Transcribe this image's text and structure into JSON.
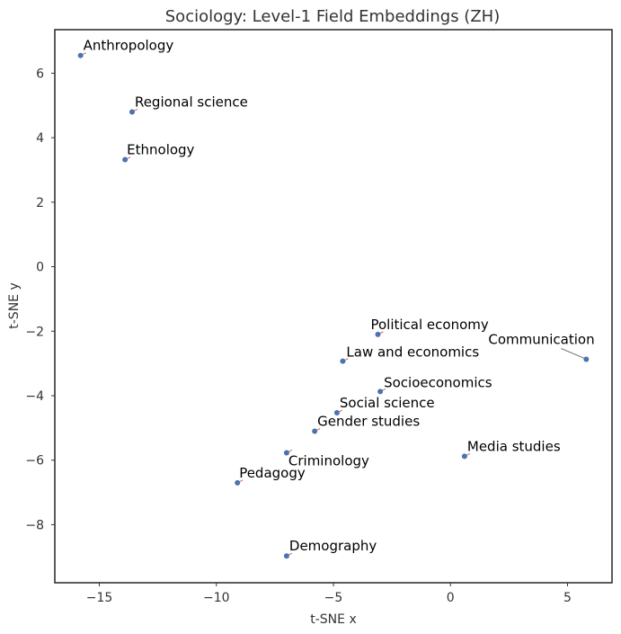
{
  "chart_data": {
    "type": "scatter",
    "title": "Sociology: Level-1 Field Embeddings (ZH)",
    "xlabel": "t-SNE x",
    "ylabel": "t-SNE y",
    "xlim": [
      -16.9,
      6.9
    ],
    "ylim": [
      -9.8,
      7.35
    ],
    "xticks": [
      -15,
      -10,
      -5,
      0,
      5
    ],
    "yticks": [
      -8,
      -6,
      -4,
      -2,
      0,
      2,
      4,
      6
    ],
    "xtick_labels": [
      "−15",
      "−10",
      "−5",
      "0",
      "5"
    ],
    "ytick_labels": [
      "−8",
      "−6",
      "−4",
      "−2",
      "0",
      "2",
      "4",
      "6"
    ],
    "point_color": "#4c72b0",
    "grid": false,
    "points": [
      {
        "label": "Anthropology",
        "x": -15.8,
        "y": 6.55
      },
      {
        "label": "Regional science",
        "x": -13.6,
        "y": 4.8
      },
      {
        "label": "Ethnology",
        "x": -13.9,
        "y": 3.32
      },
      {
        "label": "Political economy",
        "x": -3.1,
        "y": -2.1
      },
      {
        "label": "Communication",
        "x": 5.8,
        "y": -2.87
      },
      {
        "label": "Law and economics",
        "x": -4.6,
        "y": -2.93
      },
      {
        "label": "Socioeconomics",
        "x": -3.0,
        "y": -3.87
      },
      {
        "label": "Social science",
        "x": -4.85,
        "y": -4.53
      },
      {
        "label": "Gender studies",
        "x": -5.8,
        "y": -5.1
      },
      {
        "label": "Media studies",
        "x": 0.6,
        "y": -5.88
      },
      {
        "label": "Criminology",
        "x": -7.0,
        "y": -5.77
      },
      {
        "label": "Pedagogy",
        "x": -9.1,
        "y": -6.7
      },
      {
        "label": "Demography",
        "x": -7.0,
        "y": -8.97
      }
    ]
  }
}
